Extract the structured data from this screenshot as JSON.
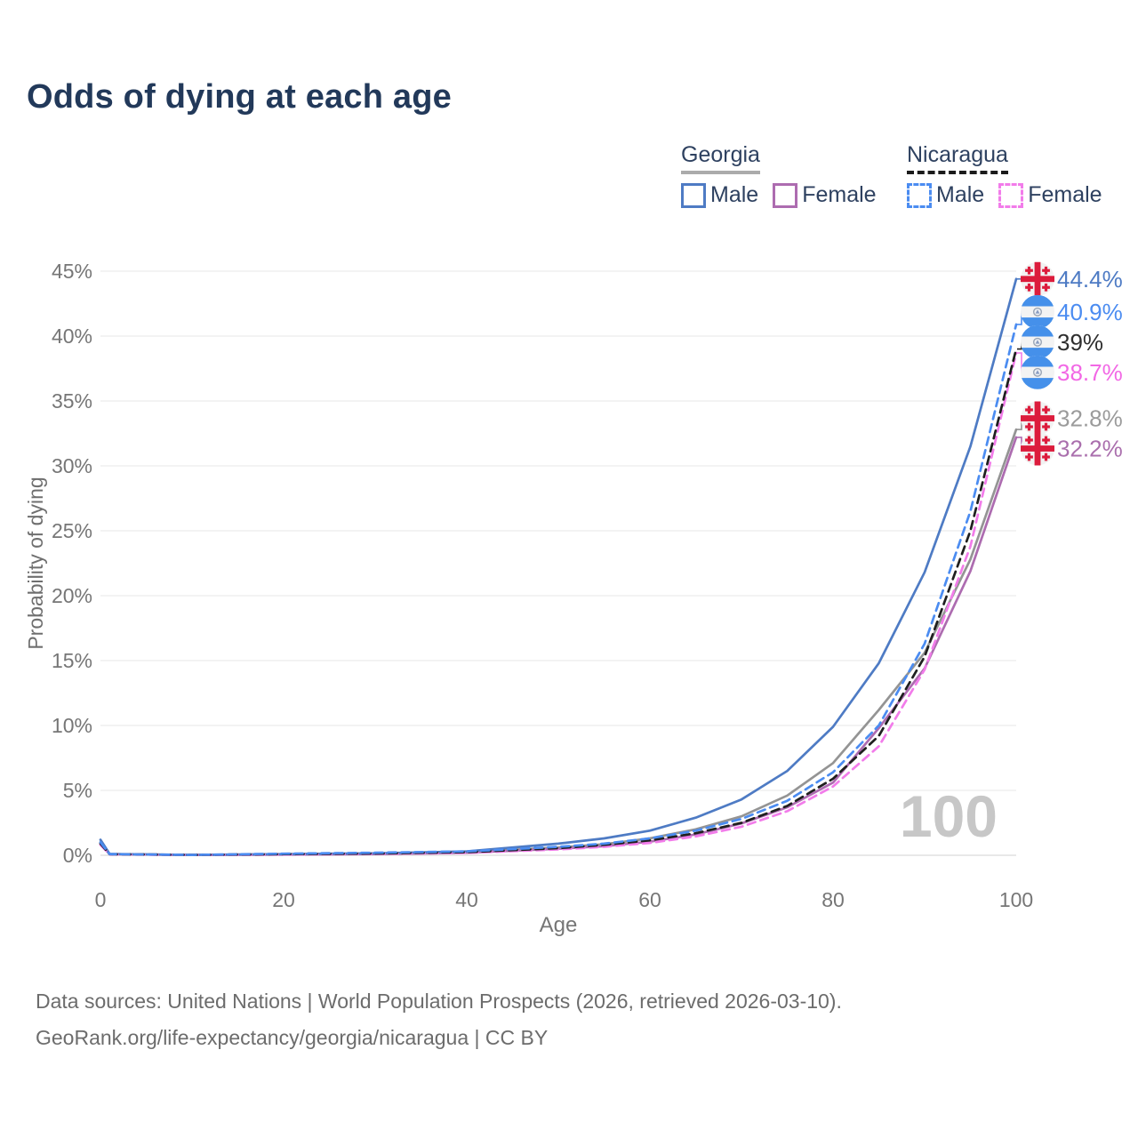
{
  "title": "Odds of dying at each age",
  "legend": {
    "groups": [
      {
        "country": "Georgia",
        "line_style": "solid",
        "line_color": "#ababab",
        "items": [
          {
            "label": "Male",
            "color": "#4e7bc4"
          },
          {
            "label": "Female",
            "color": "#ad6cb0"
          }
        ]
      },
      {
        "country": "Nicaragua",
        "line_style": "dashed",
        "line_color": "#1b1b1b",
        "items": [
          {
            "label": "Male",
            "color": "#4b8cf1"
          },
          {
            "label": "Female",
            "color": "#f27cea"
          }
        ]
      }
    ]
  },
  "chart_data": {
    "type": "line",
    "title": "Odds of dying at each age",
    "xlabel": "Age",
    "ylabel": "Probability of dying",
    "xlim": [
      0,
      100
    ],
    "ylim": [
      0,
      45
    ],
    "x_ticks": [
      0,
      20,
      40,
      60,
      80,
      100
    ],
    "y_tick_percents": [
      0,
      5,
      10,
      15,
      20,
      25,
      30,
      35,
      40,
      45
    ],
    "grid": true,
    "legend_position": "top-right",
    "ages": [
      0,
      1,
      10,
      20,
      30,
      40,
      50,
      55,
      60,
      65,
      70,
      75,
      80,
      85,
      90,
      95,
      100
    ],
    "series": [
      {
        "name": "Georgia",
        "country": "Georgia",
        "sex": "All",
        "flag": "georgia",
        "color": "#949494",
        "dash": false,
        "end_label": "32.8%",
        "end_label_color": "#9b9b9b",
        "values": [
          1.0,
          0.09,
          0.025,
          0.07,
          0.12,
          0.25,
          0.6,
          0.85,
          1.3,
          2.0,
          3.0,
          4.6,
          7.1,
          11.2,
          15.6,
          22.8,
          32.8
        ]
      },
      {
        "name": "Georgia Female",
        "country": "Georgia",
        "sex": "Female",
        "flag": "georgia",
        "color": "#ad6cb0",
        "dash": false,
        "end_label": "32.2%",
        "end_label_color": "#aa6fad",
        "values": [
          0.9,
          0.08,
          0.02,
          0.05,
          0.09,
          0.2,
          0.5,
          0.7,
          1.05,
          1.6,
          2.45,
          3.7,
          5.6,
          9.8,
          14.4,
          21.9,
          32.2
        ]
      },
      {
        "name": "Georgia Male",
        "country": "Georgia",
        "sex": "Male",
        "flag": "georgia",
        "color": "#4e7bc4",
        "dash": false,
        "end_label": "44.4%",
        "end_label_color": "#4e7bc4",
        "values": [
          1.2,
          0.1,
          0.03,
          0.09,
          0.15,
          0.3,
          0.9,
          1.3,
          1.9,
          2.9,
          4.3,
          6.5,
          9.9,
          14.8,
          21.8,
          31.5,
          44.4
        ]
      },
      {
        "name": "Nicaragua Female",
        "country": "Nicaragua",
        "sex": "Female",
        "flag": "nicaragua",
        "color": "#f27cea",
        "dash": true,
        "end_label": "38.7%",
        "end_label_color": "#f268e5",
        "values": [
          0.8,
          0.07,
          0.02,
          0.06,
          0.1,
          0.18,
          0.45,
          0.65,
          0.95,
          1.45,
          2.2,
          3.4,
          5.3,
          8.4,
          14.3,
          23.8,
          38.7
        ]
      },
      {
        "name": "Nicaragua",
        "country": "Nicaragua",
        "sex": "All",
        "flag": "nicaragua",
        "color": "#1f1f1f",
        "dash": true,
        "end_label": "39%",
        "end_label_color": "#2e2e2e",
        "values": [
          0.9,
          0.08,
          0.025,
          0.09,
          0.14,
          0.24,
          0.55,
          0.8,
          1.15,
          1.7,
          2.5,
          3.8,
          5.9,
          9.2,
          15.3,
          25.0,
          39.0
        ]
      },
      {
        "name": "Nicaragua Male",
        "country": "Nicaragua",
        "sex": "Male",
        "flag": "nicaragua",
        "color": "#4b8cf1",
        "dash": true,
        "end_label": "40.9%",
        "end_label_color": "#4b8cf1",
        "values": [
          1.0,
          0.09,
          0.03,
          0.12,
          0.2,
          0.3,
          0.65,
          0.9,
          1.3,
          1.9,
          2.8,
          4.2,
          6.4,
          10.0,
          16.3,
          26.5,
          40.9
        ]
      }
    ]
  },
  "watermark": "100",
  "footer": {
    "line1": "Data sources: United Nations | World Population Prospects (2026, retrieved 2026-03-10).",
    "line2": "GeoRank.org/life-expectancy/georgia/nicaragua | CC BY"
  }
}
